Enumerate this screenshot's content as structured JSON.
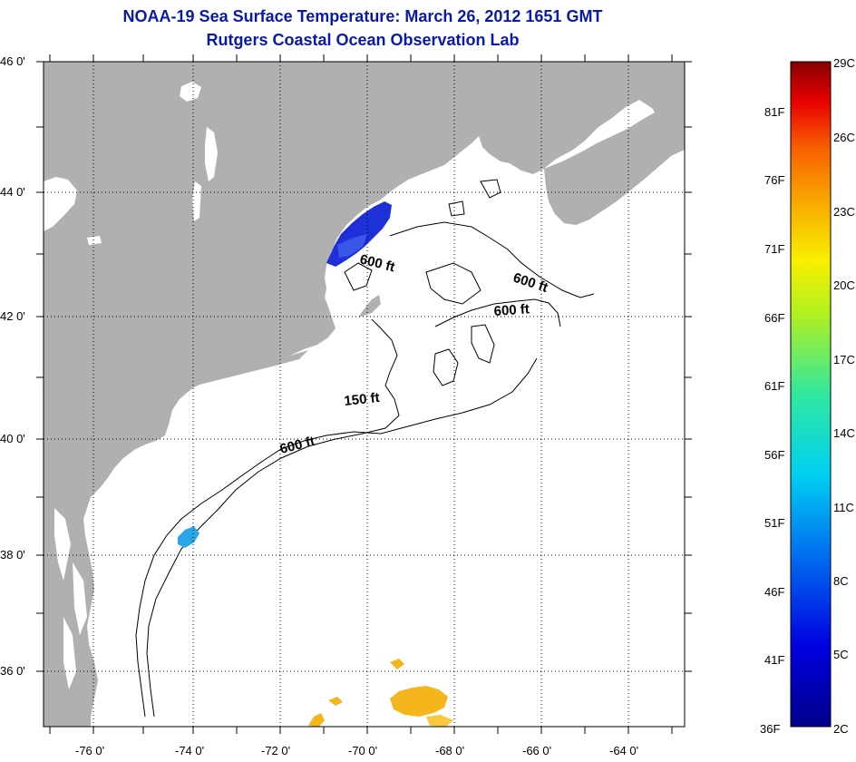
{
  "header": {
    "title": "NOAA-19 Sea Surface Temperature:  March 26, 2012 1651 GMT",
    "subtitle": "Rutgers Coastal Ocean Observation Lab"
  },
  "map": {
    "lat_labels": [
      "46 0'",
      "44 0'",
      "42 0'",
      "40 0'",
      "38 0'",
      "36 0'"
    ],
    "lon_labels": [
      "-76 0'",
      "-74 0'",
      "-72 0'",
      "-70 0'",
      "-68 0'",
      "-66 0'",
      "-64 0'"
    ],
    "lat_range": [
      35.1,
      46.0
    ],
    "lon_range": [
      -77.0,
      -62.5
    ],
    "isobath_labels": [
      "600 ft",
      "600 ft",
      "600 ft",
      "150 ft",
      "600 ft"
    ],
    "colors": {
      "land": "#b0b0b0",
      "water": "#ffffff",
      "cold_patch": "#1e30d8",
      "cool_patch": "#2aa6e8",
      "warm_patch": "#f4b61c"
    }
  },
  "colorbar": {
    "celsius_labels": [
      "29C",
      "26C",
      "23C",
      "20C",
      "17C",
      "14C",
      "11C",
      "8C",
      "5C",
      "2C"
    ],
    "fahrenheit_labels": [
      "81F",
      "76F",
      "71F",
      "66F",
      "61F",
      "56F",
      "51F",
      "46F",
      "41F",
      "36F"
    ],
    "min_c": 2,
    "max_c": 29
  }
}
